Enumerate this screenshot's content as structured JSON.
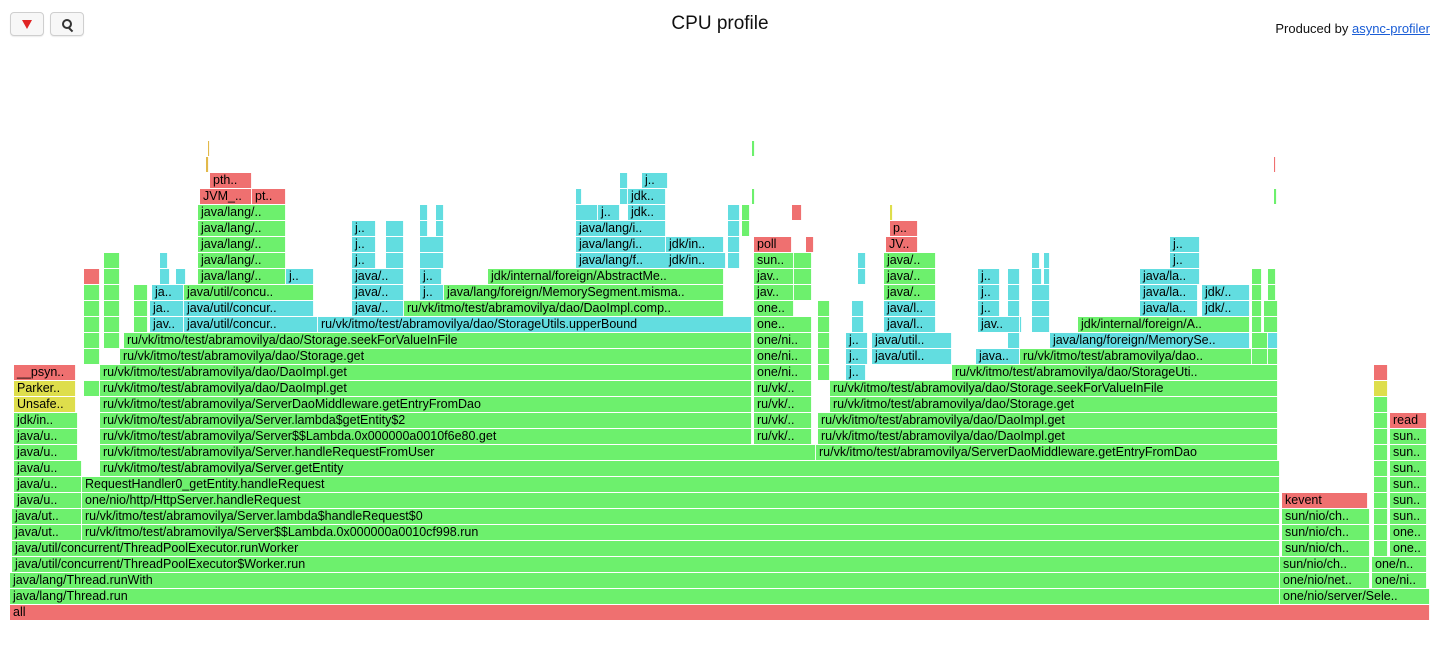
{
  "toolbar": {
    "reverse_icon": "red-down-triangle-icon",
    "search_icon": "magnifier-icon"
  },
  "title": "CPU profile",
  "produced_by": {
    "prefix": "Produced by ",
    "link": "async-profiler"
  },
  "colors": {
    "green": "#6df06d",
    "cyan": "#62dde0",
    "red": "#ef7070",
    "yellow": "#dede4c",
    "orange": "#e2b94a"
  },
  "frames": {
    "all": "all",
    "thread_run": "java/lang/Thread.run",
    "thread_runwith": "java/lang/Thread.runWith",
    "worker_run": "java/util/concurrent/ThreadPoolExecutor$Worker.run",
    "run_worker": "java/util/concurrent/ThreadPoolExecutor.runWorker",
    "server_lambda_run": "ru/vk/itmo/test/abramovilya/Server$$Lambda.0x000000a0010cf998.run",
    "server_lambda_handle": "ru/vk/itmo/test/abramovilya/Server.lambda$handleRequest$0",
    "http_handle": "one/nio/http/HttpServer.handleRequest",
    "req_handler": "RequestHandler0_getEntity.handleRequest",
    "server_getentity": "ru/vk/itmo/test/abramovilya/Server.getEntity",
    "handle_from_user": "ru/vk/itmo/test/abramovilya/Server.handleRequestFromUser",
    "server_lambda_get": "ru/vk/itmo/test/abramovilya/Server$$Lambda.0x000000a0010f6e80.get",
    "lambda_getentity": "ru/vk/itmo/test/abramovilya/Server.lambda$getEntity$2",
    "mw_getentry": "ru/vk/itmo/test/abramovilya/ServerDaoMiddleware.getEntryFromDao",
    "daoimpl_get": "ru/vk/itmo/test/abramovilya/dao/DaoImpl.get",
    "storage_get": "ru/vk/itmo/test/abramovilya/dao/Storage.get",
    "storage_seek": "ru/vk/itmo/test/abramovilya/dao/Storage.seekForValueInFile",
    "upperbound": "ru/vk/itmo/test/abramovilya/dao/StorageUtils.upperBound",
    "dao_compare": "ru/vk/itmo/test/abramovilya/dao/DaoImpl.comp..",
    "memseg_mismatch": "java/lang/foreign/MemorySegment.misma..",
    "abstract_me": "jdk/internal/foreign/AbstractMe..",
    "java_lang_i": "java/lang/i..",
    "java_lang_f": "java/lang/f..",
    "jdk_in": "jdk/in..",
    "jdk_ab": "jdk..",
    "j_dot": "j..",
    "ja_dot": "ja..",
    "jav_dot": "jav..",
    "java_dot": "java/..",
    "java_lang_dot": "java/lang/..",
    "java_util_concu": "java/util/concu..",
    "java_util_concur": "java/util/concur..",
    "jvm": "JVM_..",
    "pt": "pt..",
    "pth": "pth..",
    "p_dot": "p..",
    "jv_dot": "JV..",
    "poll": "poll",
    "sun_dot": "sun..",
    "sun_ni": "sun/ni..",
    "one_dot": "one..",
    "one_ni": "one/ni..",
    "one_n": "one/n..",
    "ru_vk": "ru/vk/..",
    "psyn": "__psyn..",
    "parker": "Parker..",
    "unsafe": "Unsafe..",
    "jdk_in_2": "jdk/in..",
    "java_u": "java/u..",
    "java_ut": "java/ut..",
    "kevent": "kevent",
    "sun_nio_ch": "sun/nio/ch..",
    "one_nio_net": "one/nio/net..",
    "one_nio_sele": "one/nio/server/Sele..",
    "read": "read",
    "java_l": "java/l..",
    "java_util": "java/util..",
    "java_la": "java/la..",
    "java_lang_foreign_memse": "java/lang/foreign/MemorySe..",
    "storage_utils": "ru/vk/itmo/test/abramovilya/dao/StorageUti..",
    "dao_right": "ru/vk/itmo/test/abramovilya/dao..",
    "jdk_internal_foreign_a": "jdk/internal/foreign/A..",
    "jdk_slash": "jdk/..",
    "java_dotdot": "java..",
    "empty": ""
  }
}
